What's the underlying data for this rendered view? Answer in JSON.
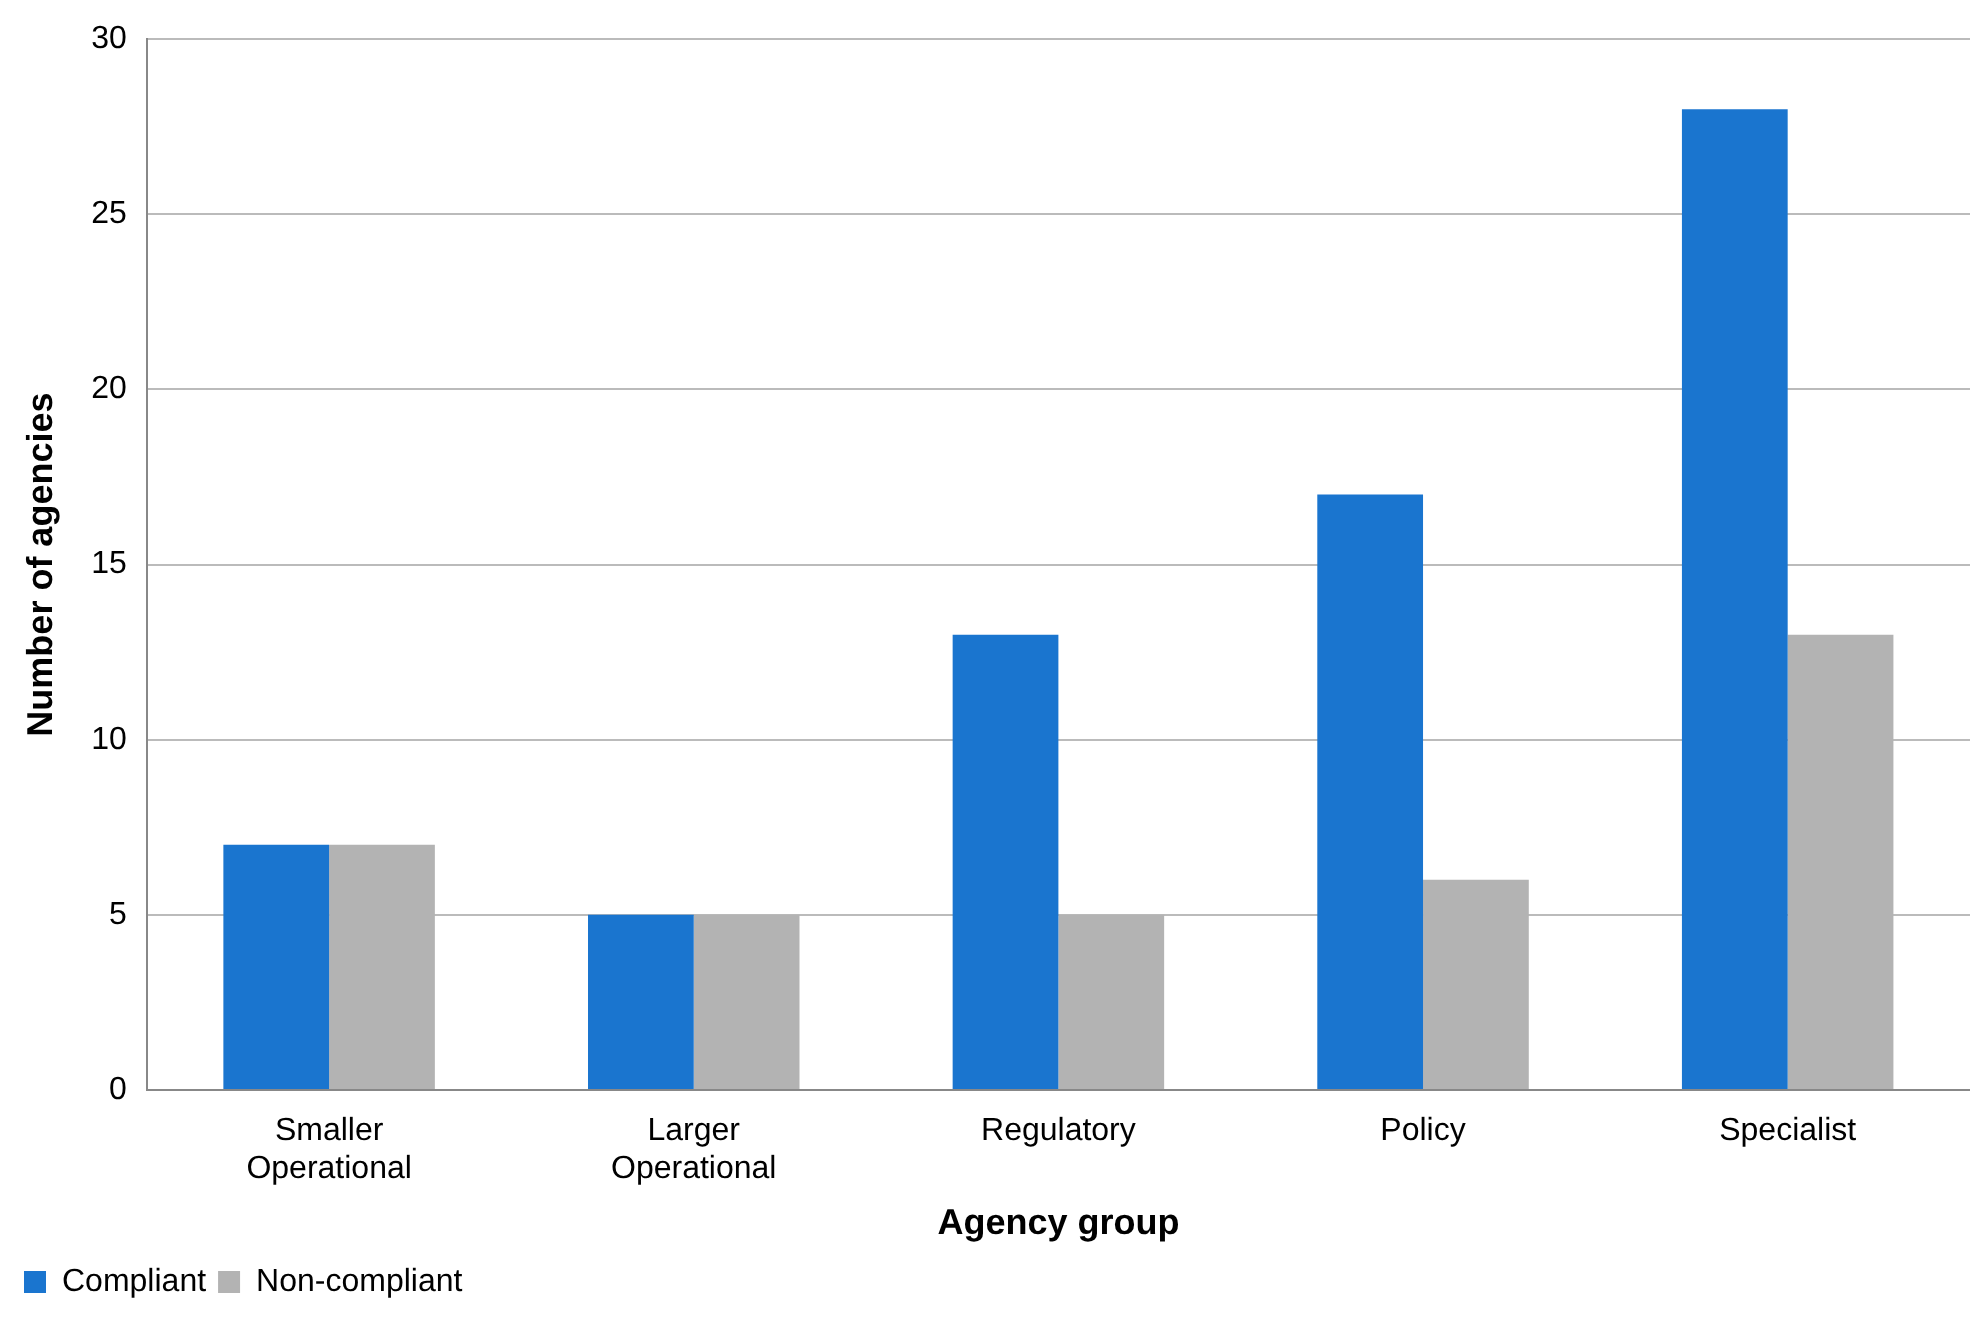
{
  "chart_data": {
    "type": "bar",
    "xlabel": "Agency group",
    "ylabel": "Number of agencies",
    "categories": [
      "Smaller Operational",
      "Larger Operational",
      "Regulatory",
      "Policy",
      "Specialist"
    ],
    "series": [
      {
        "name": "Compliant",
        "color": "#1a75cf",
        "values": [
          7,
          5,
          13,
          17,
          28
        ]
      },
      {
        "name": "Non-compliant",
        "color": "#b3b3b3",
        "values": [
          7,
          5,
          5,
          6,
          13
        ]
      }
    ],
    "ylim": [
      0,
      30
    ],
    "yticks": [
      0,
      5,
      10,
      15,
      20,
      25,
      30
    ],
    "grid": "y",
    "legend": "bottom left"
  }
}
